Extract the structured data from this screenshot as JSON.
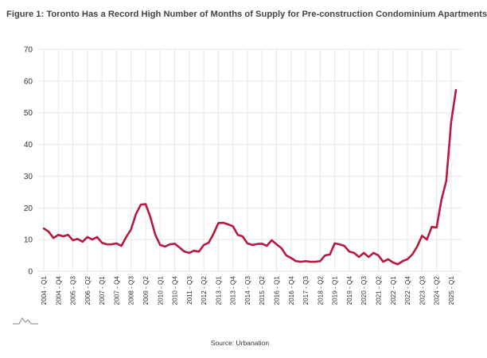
{
  "figure_title": "Figure 1: Toronto Has a Record High Number of Months of Supply for Pre-construction Condominium Apartments",
  "source": "Source: Urbanation",
  "colors": {
    "line": "#b5193f",
    "grid": "#e6e6e6",
    "axis_text": "#333333",
    "title": "#444444"
  },
  "chart_data": {
    "type": "line",
    "title": "Figure 1: Toronto Has a Record High Number of Months of Supply for Pre-construction Condominium Apartments",
    "xlabel": "",
    "ylabel": "",
    "ylim": [
      0,
      70
    ],
    "yticks": [
      0,
      10,
      20,
      30,
      40,
      50,
      60,
      70
    ],
    "grid": true,
    "tick_labels": [
      "2004 - Q1",
      "2004 - Q4",
      "2005 - Q3",
      "2006 - Q2",
      "2007 - Q1",
      "2007 - Q4",
      "2008 - Q3",
      "2009 - Q2",
      "2010 - Q1",
      "2010 - Q4",
      "2011 - Q3",
      "2012 - Q2",
      "2013 - Q1",
      "2013 - Q4",
      "2014 - Q3",
      "2015 - Q2",
      "2016 - Q1",
      "2016 - Q4",
      "2017 - Q3",
      "2018 - Q2",
      "2019 - Q1",
      "2019 - Q4",
      "2020 - Q3",
      "2021 - Q2",
      "2022 - Q1",
      "2022 - Q4",
      "2023 - Q3",
      "2024 - Q2",
      "2025 - Q1"
    ],
    "series": [
      {
        "name": "Months of Supply",
        "values": [
          13.5,
          12.5,
          10.5,
          11.5,
          11.0,
          11.5,
          9.8,
          10.2,
          9.3,
          10.8,
          10.0,
          10.8,
          9.0,
          8.5,
          8.5,
          8.8,
          8.0,
          10.8,
          13.2,
          18.0,
          21.0,
          21.2,
          17.0,
          11.5,
          8.3,
          7.8,
          8.5,
          8.7,
          7.5,
          6.2,
          5.8,
          6.5,
          6.2,
          8.3,
          9.0,
          11.8,
          15.2,
          15.3,
          14.8,
          14.2,
          11.5,
          11.0,
          8.8,
          8.3,
          8.6,
          8.7,
          8.0,
          9.8,
          8.5,
          7.3,
          5.0,
          4.2,
          3.2,
          3.0,
          3.2,
          3.0,
          3.0,
          3.2,
          5.0,
          5.3,
          8.8,
          8.5,
          8.0,
          6.2,
          5.8,
          4.5,
          5.8,
          4.5,
          5.8,
          5.0,
          3.0,
          3.8,
          2.8,
          2.2,
          3.2,
          3.8,
          5.3,
          7.8,
          11.2,
          10.0,
          14.0,
          13.8,
          22.5,
          28.5,
          47.0,
          57.2
        ]
      }
    ]
  }
}
